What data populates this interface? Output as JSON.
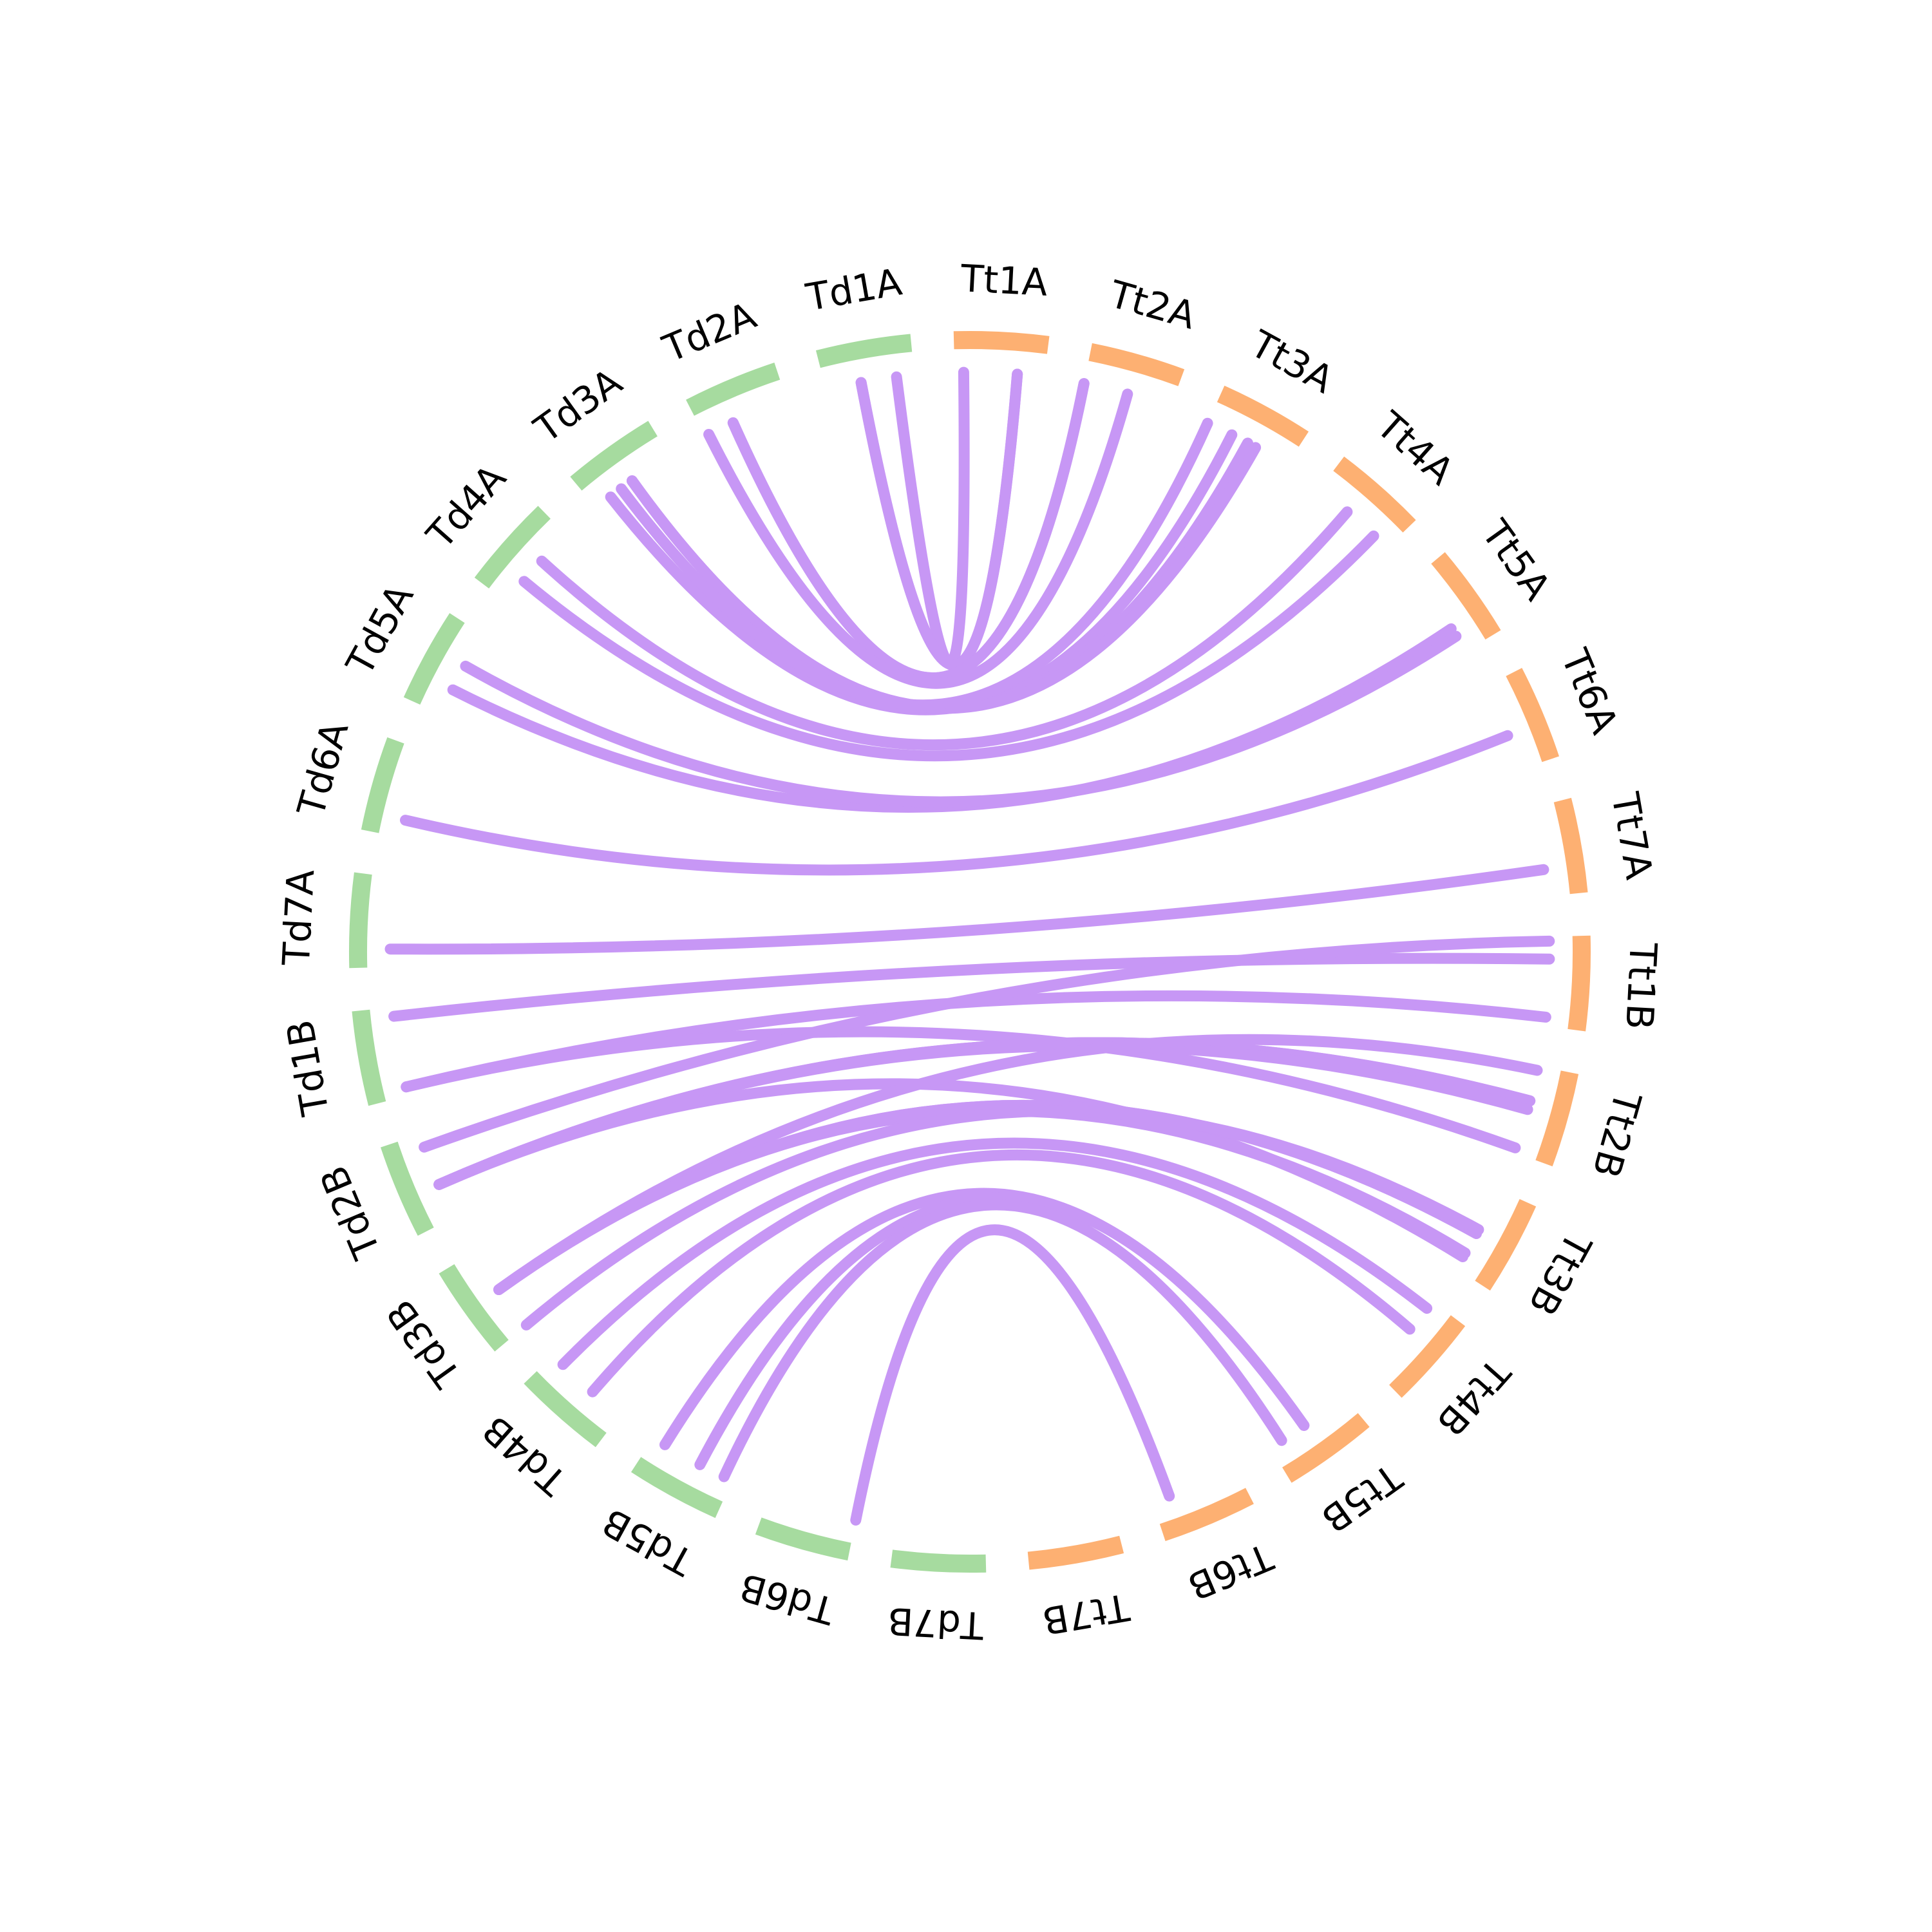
{
  "chart_data": {
    "type": "chord",
    "title": "",
    "chromosomes": [
      {
        "name": "Tt1A",
        "genome": "Tt"
      },
      {
        "name": "Tt2A",
        "genome": "Tt"
      },
      {
        "name": "Tt3A",
        "genome": "Tt"
      },
      {
        "name": "Tt4A",
        "genome": "Tt"
      },
      {
        "name": "Tt5A",
        "genome": "Tt"
      },
      {
        "name": "Tt6A",
        "genome": "Tt"
      },
      {
        "name": "Tt7A",
        "genome": "Tt"
      },
      {
        "name": "Tt1B",
        "genome": "Tt"
      },
      {
        "name": "Tt2B",
        "genome": "Tt"
      },
      {
        "name": "Tt3B",
        "genome": "Tt"
      },
      {
        "name": "Tt4B",
        "genome": "Tt"
      },
      {
        "name": "Tt5B",
        "genome": "Tt"
      },
      {
        "name": "Tt6B",
        "genome": "Tt"
      },
      {
        "name": "Tt7B",
        "genome": "Tt"
      },
      {
        "name": "Td7B",
        "genome": "Td"
      },
      {
        "name": "Td6B",
        "genome": "Td"
      },
      {
        "name": "Td5B",
        "genome": "Td"
      },
      {
        "name": "Td4B",
        "genome": "Td"
      },
      {
        "name": "Td3B",
        "genome": "Td"
      },
      {
        "name": "Td2B",
        "genome": "Td"
      },
      {
        "name": "Td1B",
        "genome": "Td"
      },
      {
        "name": "Td7A",
        "genome": "Td"
      },
      {
        "name": "Td6A",
        "genome": "Td"
      },
      {
        "name": "Td5A",
        "genome": "Td"
      },
      {
        "name": "Td4A",
        "genome": "Td"
      },
      {
        "name": "Td3A",
        "genome": "Td"
      },
      {
        "name": "Td2A",
        "genome": "Td"
      },
      {
        "name": "Td1A",
        "genome": "Td"
      }
    ],
    "genome_colors": {
      "Tt": "#fdb072",
      "Td": "#a6db9f"
    },
    "link_color": "#c797f5",
    "links": [
      {
        "from": "Td1A",
        "from_pos": 0.8,
        "to": "Tt1A",
        "to_pos": 0.1
      },
      {
        "from": "Td1A",
        "from_pos": 0.4,
        "to": "Tt1A",
        "to_pos": 0.7
      },
      {
        "from": "Td1A",
        "from_pos": 0.4,
        "to": "Tt1A",
        "to_pos": 0.7
      },
      {
        "from": "Td2A",
        "from_pos": 0.35,
        "to": "Tt2A",
        "to_pos": 0.0
      },
      {
        "from": "Td2A",
        "from_pos": 0.35,
        "to": "Tt2A",
        "to_pos": 0.0
      },
      {
        "from": "Td2A",
        "from_pos": 0.05,
        "to": "Tt2A",
        "to_pos": 0.5
      },
      {
        "from": "Td3A",
        "from_pos": 0.5,
        "to": "Tt3A",
        "to_pos": 0.5
      },
      {
        "from": "Td3A",
        "from_pos": 0.2,
        "to": "Tt3A",
        "to_pos": 0.3
      },
      {
        "from": "Td3A",
        "from_pos": 0.5,
        "to": "Tt3A",
        "to_pos": 0.5
      },
      {
        "from": "Td3A",
        "from_pos": 0.5,
        "to": "Tt3A",
        "to_pos": 0.6
      },
      {
        "from": "Td3A",
        "from_pos": 0.35,
        "to": "Tt3A",
        "to_pos": 0.0
      },
      {
        "from": "Td4A",
        "from_pos": 0.3,
        "to": "Tt4A",
        "to_pos": 0.8
      },
      {
        "from": "Td4A",
        "from_pos": 0.6,
        "to": "Tt4A",
        "to_pos": 0.4
      },
      {
        "from": "Td5A",
        "from_pos": 0.3,
        "to": "Tt5A",
        "to_pos": 0.7
      },
      {
        "from": "Td5A",
        "from_pos": 0.6,
        "to": "Tt5A",
        "to_pos": 0.8
      },
      {
        "from": "Td6A",
        "from_pos": 0.2,
        "to": "Tt6A",
        "to_pos": 0.6
      },
      {
        "from": "Td7A",
        "from_pos": 0.2,
        "to": "Tt7A",
        "to_pos": 0.7
      },
      {
        "from": "Td1B",
        "from_pos": 0.9,
        "to": "Tt1B",
        "to_pos": 0.25
      },
      {
        "from": "Td1B",
        "from_pos": 0.1,
        "to": "Tt1B",
        "to_pos": 0.9
      },
      {
        "from": "Td1B",
        "from_pos": 0.1,
        "to": "Tt2B",
        "to_pos": 0.95
      },
      {
        "from": "Td2B",
        "from_pos": 0.85,
        "to": "Tt1B",
        "to_pos": 0.05
      },
      {
        "from": "Td2B",
        "from_pos": 0.4,
        "to": "Tt2B",
        "to_pos": 0.4
      },
      {
        "from": "Td2B",
        "from_pos": 0.4,
        "to": "Tt2B",
        "to_pos": 0.4
      },
      {
        "from": "Td2B",
        "from_pos": 0.4,
        "to": "Tt2B",
        "to_pos": 0.5
      },
      {
        "from": "Td2B",
        "from_pos": 0.4,
        "to": "Tt3B",
        "to_pos": 0.85
      },
      {
        "from": "Td3B",
        "from_pos": 0.5,
        "to": "Tt2B",
        "to_pos": 0.05
      },
      {
        "from": "Td3B",
        "from_pos": 0.5,
        "to": "Tt3B",
        "to_pos": 0.8
      },
      {
        "from": "Td3B",
        "from_pos": 0.5,
        "to": "Tt3B",
        "to_pos": 0.55
      },
      {
        "from": "Td3B",
        "from_pos": 0.5,
        "to": "Tt3B",
        "to_pos": 0.55
      },
      {
        "from": "Td3B",
        "from_pos": 0.0,
        "to": "Tt3B",
        "to_pos": 0.5
      },
      {
        "from": "Td4B",
        "from_pos": 0.85,
        "to": "Tt4B",
        "to_pos": 0.1
      },
      {
        "from": "Td4B",
        "from_pos": 0.4,
        "to": "Tt4B",
        "to_pos": 0.4
      },
      {
        "from": "Td5B",
        "from_pos": 0.85,
        "to": "Tt5B",
        "to_pos": 0.55
      },
      {
        "from": "Td5B",
        "from_pos": 0.4,
        "to": "Tt5B",
        "to_pos": 0.55
      },
      {
        "from": "Td5B",
        "from_pos": 0.1,
        "to": "Tt5B",
        "to_pos": 0.85
      },
      {
        "from": "Td6B",
        "from_pos": 0.0,
        "to": "Tt6B",
        "to_pos": 0.8
      }
    ]
  }
}
